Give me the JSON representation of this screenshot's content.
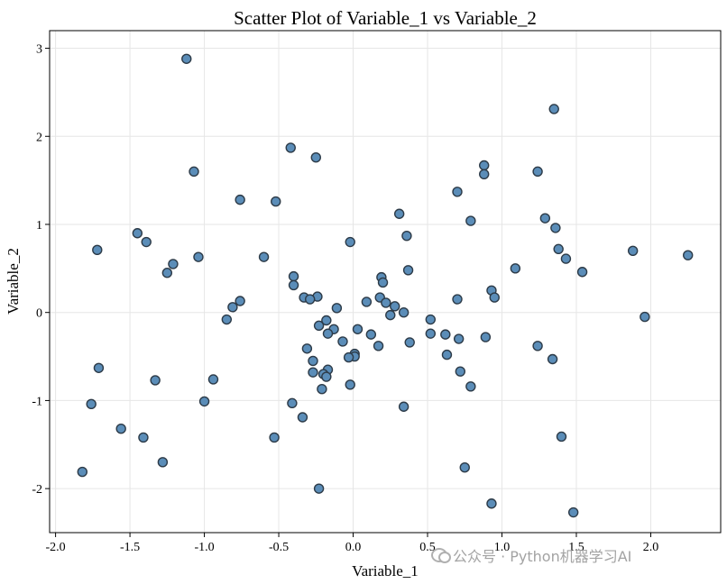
{
  "chart_data": {
    "type": "scatter",
    "title": "Scatter Plot of Variable_1 vs Variable_2",
    "xlabel": "Variable_1",
    "ylabel": "Variable_2",
    "xlim": [
      -2.04,
      2.47
    ],
    "ylim": [
      -2.5,
      3.2
    ],
    "xticks": [
      -2.0,
      -1.5,
      -1.0,
      -0.5,
      0.0,
      0.5,
      1.0,
      1.5,
      2.0
    ],
    "xtick_labels": [
      "-2.0",
      "-1.5",
      "-1.0",
      "-0.5",
      "0.0",
      "0.5",
      "1.0",
      "1.5",
      "2.0"
    ],
    "yticks": [
      -2,
      -1,
      0,
      1,
      2,
      3
    ],
    "ytick_labels": [
      "-2",
      "-1",
      "0",
      "1",
      "2",
      "3"
    ],
    "grid": true,
    "colors": {
      "marker_fill": "#5b8db8",
      "marker_edge": "#2d3b48"
    },
    "points": [
      [
        -1.12,
        2.88
      ],
      [
        1.35,
        2.31
      ],
      [
        -0.42,
        1.87
      ],
      [
        -0.25,
        1.76
      ],
      [
        0.88,
        1.67
      ],
      [
        -1.07,
        1.6
      ],
      [
        1.24,
        1.6
      ],
      [
        0.88,
        1.57
      ],
      [
        0.7,
        1.37
      ],
      [
        -0.76,
        1.28
      ],
      [
        -0.52,
        1.26
      ],
      [
        0.31,
        1.12
      ],
      [
        1.29,
        1.07
      ],
      [
        0.79,
        1.04
      ],
      [
        1.36,
        0.96
      ],
      [
        -1.45,
        0.9
      ],
      [
        0.36,
        0.87
      ],
      [
        -1.39,
        0.8
      ],
      [
        -0.02,
        0.8
      ],
      [
        1.38,
        0.72
      ],
      [
        -1.72,
        0.71
      ],
      [
        1.88,
        0.7
      ],
      [
        2.25,
        0.65
      ],
      [
        -1.04,
        0.63
      ],
      [
        -0.6,
        0.63
      ],
      [
        1.43,
        0.61
      ],
      [
        -1.21,
        0.55
      ],
      [
        1.09,
        0.5
      ],
      [
        0.37,
        0.48
      ],
      [
        1.54,
        0.46
      ],
      [
        -1.25,
        0.45
      ],
      [
        -0.4,
        0.41
      ],
      [
        0.19,
        0.4
      ],
      [
        0.2,
        0.34
      ],
      [
        -0.4,
        0.31
      ],
      [
        0.93,
        0.25
      ],
      [
        -0.24,
        0.18
      ],
      [
        0.95,
        0.17
      ],
      [
        -0.33,
        0.17
      ],
      [
        0.18,
        0.17
      ],
      [
        0.7,
        0.15
      ],
      [
        -0.29,
        0.15
      ],
      [
        -0.76,
        0.13
      ],
      [
        0.09,
        0.12
      ],
      [
        0.22,
        0.11
      ],
      [
        0.28,
        0.07
      ],
      [
        -0.11,
        0.05
      ],
      [
        -0.81,
        0.06
      ],
      [
        0.34,
        0.0
      ],
      [
        0.25,
        -0.03
      ],
      [
        1.96,
        -0.05
      ],
      [
        -0.85,
        -0.08
      ],
      [
        0.52,
        -0.08
      ],
      [
        -0.18,
        -0.09
      ],
      [
        -0.23,
        -0.15
      ],
      [
        -0.13,
        -0.19
      ],
      [
        0.03,
        -0.19
      ],
      [
        0.52,
        -0.24
      ],
      [
        -0.17,
        -0.24
      ],
      [
        0.12,
        -0.25
      ],
      [
        0.62,
        -0.25
      ],
      [
        0.89,
        -0.28
      ],
      [
        0.71,
        -0.3
      ],
      [
        -0.07,
        -0.33
      ],
      [
        0.38,
        -0.34
      ],
      [
        0.17,
        -0.38
      ],
      [
        1.24,
        -0.38
      ],
      [
        -0.31,
        -0.41
      ],
      [
        0.01,
        -0.47
      ],
      [
        0.63,
        -0.48
      ],
      [
        0.01,
        -0.5
      ],
      [
        -0.03,
        -0.51
      ],
      [
        1.34,
        -0.53
      ],
      [
        -0.27,
        -0.55
      ],
      [
        -1.71,
        -0.63
      ],
      [
        -0.17,
        -0.65
      ],
      [
        0.72,
        -0.67
      ],
      [
        -0.27,
        -0.68
      ],
      [
        -0.2,
        -0.7
      ],
      [
        -0.18,
        -0.73
      ],
      [
        -0.94,
        -0.76
      ],
      [
        -1.33,
        -0.77
      ],
      [
        -0.02,
        -0.82
      ],
      [
        0.79,
        -0.84
      ],
      [
        -0.21,
        -0.87
      ],
      [
        -1.0,
        -1.01
      ],
      [
        -0.41,
        -1.03
      ],
      [
        -1.76,
        -1.04
      ],
      [
        0.34,
        -1.07
      ],
      [
        -0.34,
        -1.19
      ],
      [
        -1.56,
        -1.32
      ],
      [
        1.4,
        -1.41
      ],
      [
        -0.53,
        -1.42
      ],
      [
        -1.41,
        -1.42
      ],
      [
        -1.28,
        -1.7
      ],
      [
        0.75,
        -1.76
      ],
      [
        -1.82,
        -1.81
      ],
      [
        -0.23,
        -2.0
      ],
      [
        0.93,
        -2.17
      ],
      [
        1.48,
        -2.27
      ]
    ]
  },
  "watermark": {
    "text": "公众号 · Python机器学习AI",
    "icon": "wechat-icon"
  }
}
